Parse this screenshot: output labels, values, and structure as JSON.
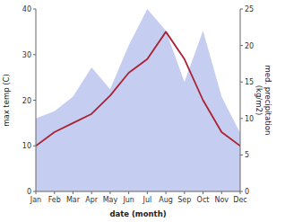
{
  "chart_data": {
    "type": "line",
    "categories": [
      "Jan",
      "Feb",
      "Mar",
      "Apr",
      "May",
      "Jun",
      "Jul",
      "Aug",
      "Sep",
      "Oct",
      "Nov",
      "Dec"
    ],
    "xlabel": "date (month)",
    "ylabel": "max temp (C)",
    "y2label": "med. precipitation\n(kg/m2)",
    "ylim": [
      0,
      40
    ],
    "yticks": [
      0,
      10,
      20,
      30,
      40
    ],
    "y2lim": [
      0,
      25
    ],
    "y2ticks": [
      0,
      5,
      10,
      15,
      20,
      25
    ],
    "grid": false,
    "series": [
      {
        "type": "area",
        "axis": "y2",
        "color": "#c5cef0",
        "values": [
          10,
          11,
          13,
          17,
          14,
          20,
          25,
          22,
          15,
          22,
          13,
          8
        ]
      },
      {
        "type": "line",
        "color": "#aa2233",
        "values": [
          10,
          13,
          15,
          17,
          21,
          26,
          29,
          35,
          29,
          20,
          13,
          10
        ]
      }
    ]
  }
}
